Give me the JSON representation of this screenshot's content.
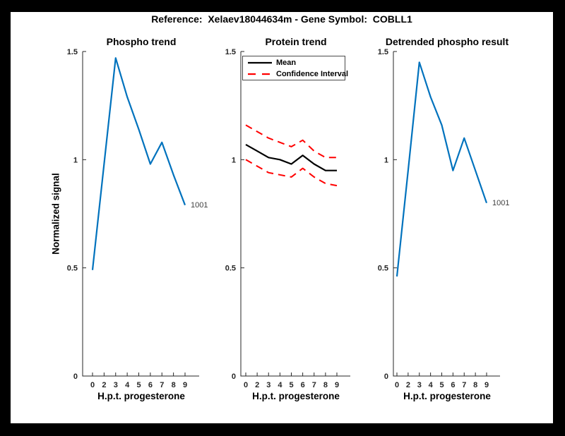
{
  "window": {
    "suptitle": "Reference:  Xelaev18044634m - Gene Symbol:  COBLL1"
  },
  "colors": {
    "figure_border": "#000000",
    "canvas_bg": "#ffffff",
    "axis_color": "#262626",
    "phospho_line": "#0072BD",
    "mean_line": "#000000",
    "ci_line": "#ff0000",
    "end_label_color": "#404040"
  },
  "chart_data": [
    {
      "type": "line",
      "title": "Phospho trend",
      "xlabel": "H.p.t. progesterone",
      "ylabel": "Normalized signal",
      "x_ticklabels": [
        "0",
        "2",
        "3",
        "4",
        "5",
        "6",
        "7",
        "8",
        "9"
      ],
      "y_ticks": [
        0,
        0.5,
        1,
        1.5
      ],
      "ylim": [
        0,
        1.5
      ],
      "grid": false,
      "legend": null,
      "series": [
        {
          "name": "1001",
          "color": "#0072BD",
          "style": "solid",
          "end_label": "1001",
          "values": [
            0.49,
            0.98,
            1.47,
            1.29,
            1.14,
            0.98,
            1.08,
            0.93,
            0.79
          ]
        }
      ]
    },
    {
      "type": "line",
      "title": "Protein trend",
      "xlabel": "H.p.t. progesterone",
      "ylabel": null,
      "x_ticklabels": [
        "0",
        "2",
        "3",
        "4",
        "5",
        "6",
        "7",
        "8",
        "9"
      ],
      "y_ticks": [
        0,
        0.5,
        1,
        1.5
      ],
      "ylim": [
        0,
        1.5
      ],
      "grid": false,
      "legend": {
        "position": "northwest",
        "entries": [
          {
            "label": "Mean",
            "color": "#000000",
            "style": "solid"
          },
          {
            "label": "Confidence Interval",
            "color": "#ff0000",
            "style": "dashed"
          }
        ]
      },
      "series": [
        {
          "name": "Mean",
          "color": "#000000",
          "style": "solid",
          "values": [
            1.07,
            1.04,
            1.01,
            1.0,
            0.98,
            1.02,
            0.98,
            0.95,
            0.95
          ]
        },
        {
          "name": "Confidence Interval upper",
          "color": "#ff0000",
          "style": "dashed",
          "values": [
            1.16,
            1.13,
            1.1,
            1.08,
            1.06,
            1.09,
            1.04,
            1.01,
            1.01
          ]
        },
        {
          "name": "Confidence Interval lower",
          "color": "#ff0000",
          "style": "dashed",
          "values": [
            1.0,
            0.97,
            0.94,
            0.93,
            0.92,
            0.96,
            0.92,
            0.89,
            0.88
          ]
        }
      ]
    },
    {
      "type": "line",
      "title": "Detrended phospho result",
      "xlabel": "H.p.t. progesterone",
      "ylabel": null,
      "x_ticklabels": [
        "0",
        "2",
        "3",
        "4",
        "5",
        "6",
        "7",
        "8",
        "9"
      ],
      "y_ticks": [
        0,
        0.5,
        1,
        1.5
      ],
      "ylim": [
        0,
        1.5
      ],
      "grid": false,
      "legend": null,
      "series": [
        {
          "name": "1001",
          "color": "#0072BD",
          "style": "solid",
          "end_label": "1001",
          "values": [
            0.46,
            0.95,
            1.45,
            1.29,
            1.16,
            0.95,
            1.1,
            0.95,
            0.8
          ]
        }
      ]
    }
  ]
}
